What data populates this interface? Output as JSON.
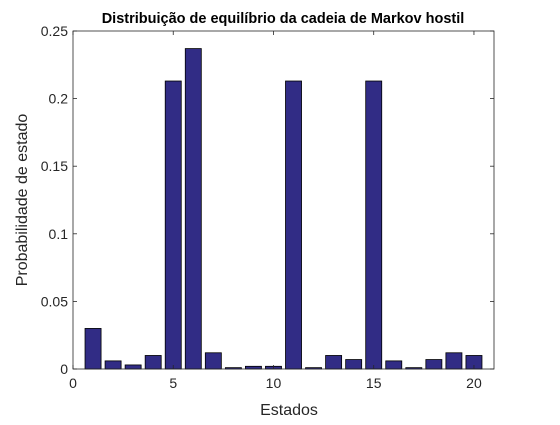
{
  "chart_data": {
    "type": "bar",
    "title": "Distribuição de equilíbrio da cadeia de Markov hostil",
    "xlabel": "Estados",
    "ylabel": "Probabilidade de estado",
    "x": [
      1,
      2,
      3,
      4,
      5,
      6,
      7,
      8,
      9,
      10,
      11,
      12,
      13,
      14,
      15,
      16,
      17,
      18,
      19,
      20
    ],
    "values": [
      0.03,
      0.006,
      0.003,
      0.01,
      0.213,
      0.237,
      0.012,
      0.001,
      0.002,
      0.002,
      0.213,
      0.001,
      0.01,
      0.007,
      0.213,
      0.006,
      0.001,
      0.007,
      0.012,
      0.01
    ],
    "xlim": [
      0,
      21
    ],
    "ylim": [
      0,
      0.25
    ],
    "xticks": [
      0,
      5,
      10,
      15,
      20
    ],
    "xtick_labels": [
      "0",
      "5",
      "10",
      "15",
      "20"
    ],
    "yticks": [
      0,
      0.05,
      0.1,
      0.15,
      0.2,
      0.25
    ],
    "ytick_labels": [
      "0",
      "0.05",
      "0.1",
      "0.15",
      "0.2",
      "0.25"
    ],
    "grid": false,
    "bar_color": "#312c85",
    "bar_edge_color": "#000000",
    "axis_color": "#262626"
  }
}
